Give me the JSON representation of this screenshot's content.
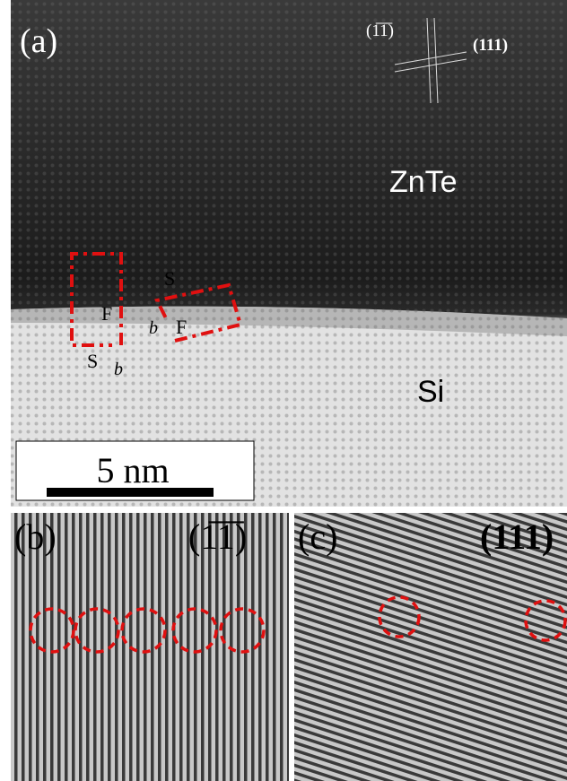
{
  "panel_a": {
    "label": "(a)",
    "directions": [
      "(1̅1̅)",
      "(111)"
    ],
    "layers": [
      "ZnTe",
      "Si"
    ],
    "scale_bar": "5 nm",
    "circuit_labels": [
      "S",
      "F",
      "b⃗",
      "S",
      "F",
      "b⃗"
    ]
  },
  "panel_b": {
    "label": "(b)",
    "direction": "(1̅1̅)"
  },
  "panel_c": {
    "label": "(c)",
    "direction": "(111)"
  }
}
